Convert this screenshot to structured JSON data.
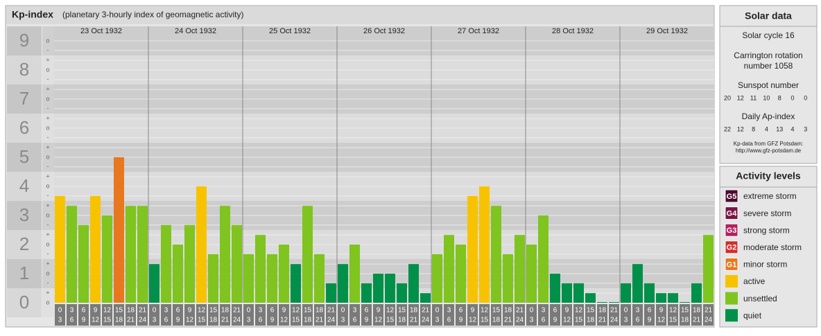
{
  "chart_data": {
    "type": "bar",
    "title": "Kp-index",
    "subtitle": "(planetary 3-hourly index of geomagnetic activity)",
    "days": [
      "23 Oct 1932",
      "24 Oct 1932",
      "25 Oct 1932",
      "26 Oct 1932",
      "27 Oct 1932",
      "28 Oct 1932",
      "29 Oct 1932"
    ],
    "intervals": [
      [
        "0",
        "3"
      ],
      [
        "3",
        "6"
      ],
      [
        "6",
        "9"
      ],
      [
        "9",
        "12"
      ],
      [
        "12",
        "15"
      ],
      [
        "15",
        "18"
      ],
      [
        "18",
        "21"
      ],
      [
        "21",
        "24"
      ]
    ],
    "series": [
      {
        "name": "extreme storm",
        "badge": "G5",
        "color": "#4d0a2e"
      },
      {
        "name": "severe storm",
        "badge": "G4",
        "color": "#7b1346"
      },
      {
        "name": "strong storm",
        "badge": "G3",
        "color": "#b4205f"
      },
      {
        "name": "moderate storm",
        "badge": "G2",
        "color": "#d12e2a"
      },
      {
        "name": "minor storm",
        "badge": "G1",
        "color": "#e8781f",
        "values": [
          null,
          null,
          null,
          null,
          null,
          5,
          null,
          null,
          null,
          null,
          null,
          null,
          null,
          null,
          null,
          null,
          null,
          null,
          null,
          null,
          null,
          null,
          null,
          null,
          null,
          null,
          null,
          null,
          null,
          null,
          null,
          null,
          null,
          null,
          null,
          null,
          null,
          null,
          null,
          null,
          null,
          null,
          null,
          null,
          null,
          null,
          null,
          null,
          null,
          null,
          null,
          null,
          null,
          null,
          null,
          null
        ]
      },
      {
        "name": "active",
        "color": "#f7c300",
        "values": [
          3.67,
          null,
          null,
          3.67,
          null,
          null,
          null,
          null,
          null,
          null,
          null,
          null,
          4,
          null,
          null,
          null,
          null,
          null,
          null,
          null,
          null,
          null,
          null,
          null,
          null,
          null,
          null,
          null,
          null,
          null,
          null,
          null,
          null,
          null,
          null,
          3.67,
          4,
          null,
          null,
          null,
          null,
          null,
          null,
          null,
          null,
          null,
          null,
          null,
          null,
          null,
          null,
          null,
          null,
          null,
          null,
          null
        ]
      },
      {
        "name": "unsettled",
        "color": "#7fc41f",
        "values": [
          null,
          3.33,
          2.67,
          null,
          3,
          null,
          3.33,
          3.33,
          null,
          2.67,
          2,
          2.67,
          null,
          1.67,
          3.33,
          2.67,
          1.67,
          2.33,
          1.67,
          2,
          null,
          3.33,
          1.67,
          null,
          null,
          2,
          null,
          null,
          null,
          null,
          null,
          null,
          1.67,
          2.33,
          2,
          null,
          null,
          3.33,
          1.67,
          2.33,
          2,
          3,
          null,
          null,
          null,
          null,
          null,
          null,
          null,
          null,
          null,
          null,
          null,
          null,
          null,
          2.33
        ]
      },
      {
        "name": "quiet",
        "color": "#00904a",
        "values": [
          null,
          null,
          null,
          null,
          null,
          null,
          null,
          null,
          1.33,
          null,
          null,
          null,
          null,
          null,
          null,
          null,
          null,
          null,
          null,
          null,
          1.33,
          null,
          null,
          0.67,
          1.33,
          null,
          0.67,
          1,
          1,
          0.67,
          1.33,
          0.33,
          null,
          null,
          null,
          null,
          null,
          null,
          null,
          null,
          null,
          null,
          1,
          0.67,
          0.67,
          0.33,
          0,
          0,
          0.67,
          1.33,
          0.67,
          0.33,
          0.33,
          0,
          0.67,
          null
        ]
      }
    ],
    "ylim": [
      0,
      9.5
    ],
    "yticks": [
      0,
      1,
      2,
      3,
      4,
      5,
      6,
      7,
      8,
      9
    ],
    "minor_yticks": [
      {
        "value": 0,
        "label": "o"
      },
      {
        "value": 0.33,
        "label": "+"
      },
      {
        "value": 0.67,
        "label": "-"
      },
      {
        "value": 1,
        "label": "o"
      },
      {
        "value": 1.33,
        "label": "+"
      },
      {
        "value": 1.67,
        "label": "-"
      },
      {
        "value": 2,
        "label": "o"
      },
      {
        "value": 2.33,
        "label": "+"
      },
      {
        "value": 2.67,
        "label": "-"
      },
      {
        "value": 3,
        "label": "o"
      },
      {
        "value": 3.33,
        "label": "+"
      },
      {
        "value": 3.67,
        "label": "-"
      },
      {
        "value": 4,
        "label": "o"
      },
      {
        "value": 4.33,
        "label": "+"
      },
      {
        "value": 4.67,
        "label": "-"
      },
      {
        "value": 5,
        "label": "o"
      },
      {
        "value": 5.33,
        "label": "+"
      },
      {
        "value": 5.67,
        "label": "-"
      },
      {
        "value": 6,
        "label": "o"
      },
      {
        "value": 6.33,
        "label": "+"
      },
      {
        "value": 6.67,
        "label": "-"
      },
      {
        "value": 7,
        "label": "o"
      },
      {
        "value": 7.33,
        "label": "+"
      },
      {
        "value": 7.67,
        "label": "-"
      },
      {
        "value": 8,
        "label": "o"
      },
      {
        "value": 8.33,
        "label": "+"
      },
      {
        "value": 8.67,
        "label": "-"
      },
      {
        "value": 9,
        "label": "o"
      }
    ],
    "grid": true
  },
  "solar_data": {
    "title": "Solar data",
    "solar_cycle": "Solar cycle 16",
    "carrington": [
      "Carrington rotation",
      "number 1058"
    ],
    "sunspot_title": "Sunspot number",
    "sunspot_numbers": [
      20,
      12,
      11,
      10,
      8,
      0,
      0
    ],
    "ap_title": "Daily Ap-index",
    "ap_values": [
      22,
      12,
      8,
      4,
      13,
      4,
      3
    ],
    "source": [
      "Kp-data from GFZ Potsdam:",
      "http://www.gfz-potsdam.de"
    ]
  },
  "activity_levels": {
    "title": "Activity levels"
  }
}
